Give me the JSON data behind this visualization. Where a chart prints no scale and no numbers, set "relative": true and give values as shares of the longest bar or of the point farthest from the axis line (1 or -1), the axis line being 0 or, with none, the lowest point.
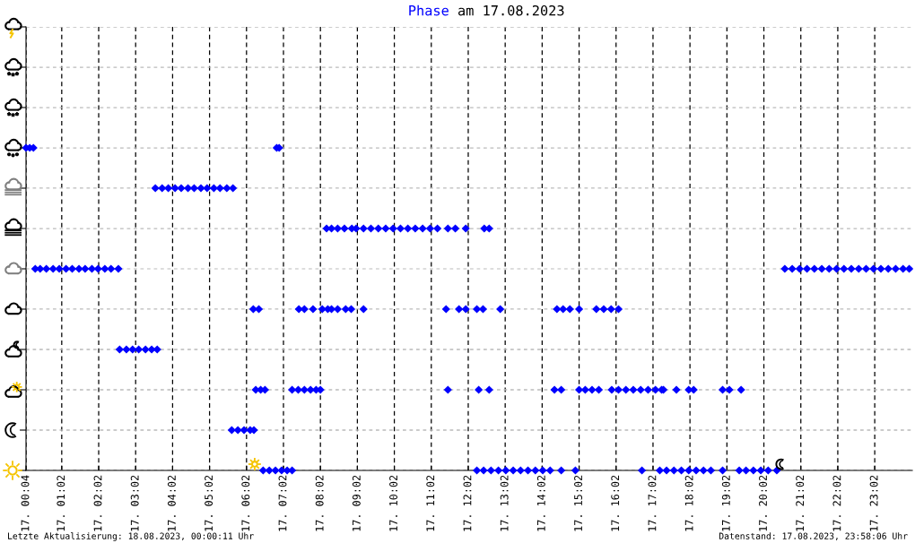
{
  "chart_data": {
    "type": "scatter",
    "title": "Phase am 17.08.2023",
    "annotations": [
      "Letzte Aktualisierung: 18.08.2023, 00:00:11 Uhr",
      "Datenstand: 17.08.2023, 23:58:06 Uhr"
    ],
    "series": [
      {
        "color": "#0000ff",
        "x": [
          "2023-08-17T00:04",
          "2023-08-17T00:10",
          "2023-08-17T00:16",
          "2023-08-17T00:19",
          "2023-08-17T00:27",
          "2023-08-17T00:37",
          "2023-08-17T00:48",
          "2023-08-17T00:58",
          "2023-08-17T01:09",
          "2023-08-17T01:19",
          "2023-08-17T01:30",
          "2023-08-17T01:40",
          "2023-08-17T01:51",
          "2023-08-17T02:01",
          "2023-08-17T02:12",
          "2023-08-17T02:22",
          "2023-08-17T02:34",
          "2023-08-17T02:36",
          "2023-08-17T02:47",
          "2023-08-17T02:57",
          "2023-08-17T03:07",
          "2023-08-17T03:18",
          "2023-08-17T03:28",
          "2023-08-17T03:37",
          "2023-08-17T03:34",
          "2023-08-17T03:45",
          "2023-08-17T03:55",
          "2023-08-17T04:06",
          "2023-08-17T04:16",
          "2023-08-17T04:27",
          "2023-08-17T04:37",
          "2023-08-17T04:48",
          "2023-08-17T04:58",
          "2023-08-17T05:09",
          "2023-08-17T05:19",
          "2023-08-17T05:30",
          "2023-08-17T05:40",
          "2023-08-17T05:38",
          "2023-08-17T05:48",
          "2023-08-17T05:58",
          "2023-08-17T06:08",
          "2023-08-17T06:14",
          "2023-08-17T06:13",
          "2023-08-17T06:22",
          "2023-08-17T06:17",
          "2023-08-17T06:25",
          "2023-08-17T06:32",
          "2023-08-17T06:29",
          "2023-08-17T06:39",
          "2023-08-17T06:49",
          "2023-08-17T06:59",
          "2023-08-17T07:08",
          "2023-08-17T07:16",
          "2023-08-17T06:51",
          "2023-08-17T06:55",
          "2023-08-17T07:16",
          "2023-08-17T07:26",
          "2023-08-17T07:36",
          "2023-08-17T07:46",
          "2023-08-17T07:55",
          "2023-08-17T08:02",
          "2023-08-17T07:27",
          "2023-08-17T07:36",
          "2023-08-17T07:50",
          "2023-08-17T08:05",
          "2023-08-17T08:14",
          "2023-08-17T08:20",
          "2023-08-17T08:30",
          "2023-08-17T08:43",
          "2023-08-17T08:52",
          "2023-08-17T09:12",
          "2023-08-17T08:12",
          "2023-08-17T08:20",
          "2023-08-17T08:30",
          "2023-08-17T08:41",
          "2023-08-17T08:53",
          "2023-08-17T09:00",
          "2023-08-17T09:12",
          "2023-08-17T09:24",
          "2023-08-17T09:36",
          "2023-08-17T09:48",
          "2023-08-17T10:00",
          "2023-08-17T10:12",
          "2023-08-17T10:24",
          "2023-08-17T10:36",
          "2023-08-17T10:48",
          "2023-08-17T11:00",
          "2023-08-17T11:12",
          "2023-08-17T11:29",
          "2023-08-17T11:41",
          "2023-08-17T11:58",
          "2023-08-17T12:28",
          "2023-08-17T12:36",
          "2023-08-17T11:29",
          "2023-08-17T12:19",
          "2023-08-17T12:36",
          "2023-08-17T11:26",
          "2023-08-17T11:47",
          "2023-08-17T11:58",
          "2023-08-17T12:16",
          "2023-08-17T12:26",
          "2023-08-17T12:54",
          "2023-08-17T12:16",
          "2023-08-17T12:27",
          "2023-08-17T12:39",
          "2023-08-17T12:51",
          "2023-08-17T13:03",
          "2023-08-17T13:15",
          "2023-08-17T13:27",
          "2023-08-17T13:39",
          "2023-08-17T13:51",
          "2023-08-17T14:03",
          "2023-08-17T14:15",
          "2023-08-17T14:33",
          "2023-08-17T14:56",
          "2023-08-17T14:26",
          "2023-08-17T14:36",
          "2023-08-17T14:47",
          "2023-08-17T15:02",
          "2023-08-17T15:30",
          "2023-08-17T15:42",
          "2023-08-17T15:54",
          "2023-08-17T16:06",
          "2023-08-17T14:22",
          "2023-08-17T14:33",
          "2023-08-17T15:02",
          "2023-08-17T15:12",
          "2023-08-17T15:23",
          "2023-08-17T15:34",
          "2023-08-17T15:55",
          "2023-08-17T16:06",
          "2023-08-17T16:18",
          "2023-08-17T16:30",
          "2023-08-17T16:42",
          "2023-08-17T16:54",
          "2023-08-17T17:06",
          "2023-08-17T17:16",
          "2023-08-17T17:19",
          "2023-08-17T17:40",
          "2023-08-17T18:00",
          "2023-08-17T18:08",
          "2023-08-17T18:55",
          "2023-08-17T19:06",
          "2023-08-17T19:25",
          "2023-08-17T16:44",
          "2023-08-17T17:13",
          "2023-08-17T17:24",
          "2023-08-17T17:36",
          "2023-08-17T17:48",
          "2023-08-17T18:00",
          "2023-08-17T18:12",
          "2023-08-17T18:24",
          "2023-08-17T18:36",
          "2023-08-17T18:55",
          "2023-08-17T19:22",
          "2023-08-17T19:33",
          "2023-08-17T19:45",
          "2023-08-17T19:57",
          "2023-08-17T20:09",
          "2023-08-17T20:23",
          "2023-08-17T20:36",
          "2023-08-17T20:48",
          "2023-08-17T21:00",
          "2023-08-17T21:12",
          "2023-08-17T21:24",
          "2023-08-17T21:36",
          "2023-08-17T21:48",
          "2023-08-17T22:00",
          "2023-08-17T22:12",
          "2023-08-17T22:24",
          "2023-08-17T22:36",
          "2023-08-17T22:48",
          "2023-08-17T23:00",
          "2023-08-17T23:12",
          "2023-08-17T23:24",
          "2023-08-17T23:36",
          "2023-08-17T23:48",
          "2023-08-17T23:58"
        ],
        "values": [
          1,
          1,
          1,
          0.625,
          0.625,
          0.625,
          0.625,
          0.625,
          0.625,
          0.625,
          0.625,
          0.625,
          0.625,
          0.625,
          0.625,
          0.625,
          0.625,
          0.375,
          0.375,
          0.375,
          0.375,
          0.375,
          0.375,
          0.375,
          0.875,
          0.875,
          0.875,
          0.875,
          0.875,
          0.875,
          0.875,
          0.875,
          0.875,
          0.875,
          0.875,
          0.875,
          0.875,
          0.125,
          0.125,
          0.125,
          0.125,
          0.125,
          0.5,
          0.5,
          0.25,
          0.25,
          0.25,
          0,
          0,
          0,
          0,
          0,
          0,
          1,
          1,
          0.25,
          0.25,
          0.25,
          0.25,
          0.25,
          0.25,
          0.5,
          0.5,
          0.5,
          0.5,
          0.5,
          0.5,
          0.5,
          0.5,
          0.5,
          0.5,
          0.75,
          0.75,
          0.75,
          0.75,
          0.75,
          0.75,
          0.75,
          0.75,
          0.75,
          0.75,
          0.75,
          0.75,
          0.75,
          0.75,
          0.75,
          0.75,
          0.75,
          0.75,
          0.75,
          0.75,
          0.75,
          0.75,
          0.25,
          0.25,
          0.25,
          0.5,
          0.5,
          0.5,
          0.5,
          0.5,
          0.5,
          0,
          0,
          0,
          0,
          0,
          0,
          0,
          0,
          0,
          0,
          0,
          0,
          0,
          0.5,
          0.5,
          0.5,
          0.5,
          0.5,
          0.5,
          0.5,
          0.5,
          0.25,
          0.25,
          0.25,
          0.25,
          0.25,
          0.25,
          0.25,
          0.25,
          0.25,
          0.25,
          0.25,
          0.25,
          0.25,
          0.25,
          0.25,
          0.25,
          0.25,
          0.25,
          0.25,
          0.25,
          0.25,
          0,
          0,
          0,
          0,
          0,
          0,
          0,
          0,
          0,
          0,
          0,
          0,
          0,
          0,
          0,
          0,
          0.625,
          0.625,
          0.625,
          0.625,
          0.625,
          0.625,
          0.625,
          0.625,
          0.625,
          0.625,
          0.625,
          0.625,
          0.625,
          0.625,
          0.625,
          0.625,
          0.625,
          0.625
        ]
      }
    ],
    "relative": true,
    "marker": "diamond",
    "xlim": [
      "2023-08-17T00:04",
      "2023-08-18T00:03"
    ],
    "xticks": [
      {
        "value": "2023-08-17T00:04",
        "label": "17. 00:04"
      },
      {
        "value": "2023-08-17T01:02",
        "label": "17. 01:02"
      },
      {
        "value": "2023-08-17T02:02",
        "label": "17. 02:02"
      },
      {
        "value": "2023-08-17T03:02",
        "label": "17. 03:02"
      },
      {
        "value": "2023-08-17T04:02",
        "label": "17. 04:02"
      },
      {
        "value": "2023-08-17T05:02",
        "label": "17. 05:02"
      },
      {
        "value": "2023-08-17T06:02",
        "label": "17. 06:02"
      },
      {
        "value": "2023-08-17T07:02",
        "label": "17. 07:02"
      },
      {
        "value": "2023-08-17T08:02",
        "label": "17. 08:02"
      },
      {
        "value": "2023-08-17T09:02",
        "label": "17. 09:02"
      },
      {
        "value": "2023-08-17T10:02",
        "label": "17. 10:02"
      },
      {
        "value": "2023-08-17T11:02",
        "label": "17. 11:02"
      },
      {
        "value": "2023-08-17T12:02",
        "label": "17. 12:02"
      },
      {
        "value": "2023-08-17T13:02",
        "label": "17. 13:02"
      },
      {
        "value": "2023-08-17T14:02",
        "label": "17. 14:02"
      },
      {
        "value": "2023-08-17T15:02",
        "label": "17. 15:02"
      },
      {
        "value": "2023-08-17T16:02",
        "label": "17. 16:02"
      },
      {
        "value": "2023-08-17T17:02",
        "label": "17. 17:02"
      },
      {
        "value": "2023-08-17T18:02",
        "label": "17. 18:02"
      },
      {
        "value": "2023-08-17T19:02",
        "label": "17. 19:02"
      },
      {
        "value": "2023-08-17T20:02",
        "label": "17. 20:02"
      },
      {
        "value": "2023-08-17T21:02",
        "label": "17. 21:02"
      },
      {
        "value": "2023-08-17T22:02",
        "label": "17. 22:02"
      },
      {
        "value": "2023-08-17T23:02",
        "label": "17. 23:02"
      }
    ],
    "grid": true
  }
}
